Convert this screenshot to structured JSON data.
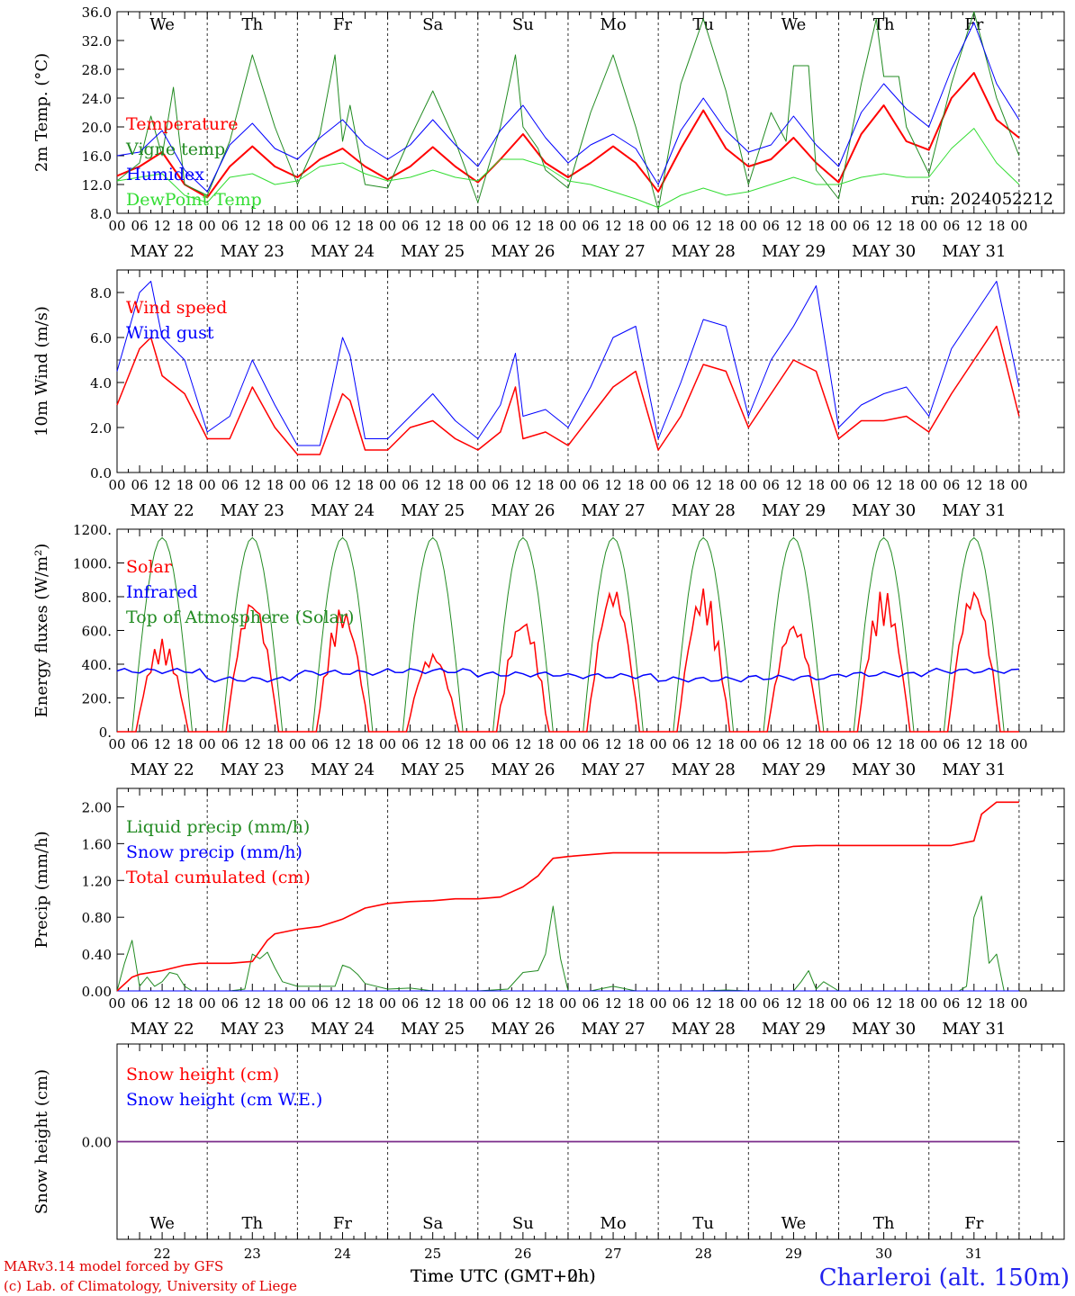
{
  "colors": {
    "red": "#ff0000",
    "green": "#228b22",
    "blue": "#0000ff",
    "lime": "#33dd33",
    "purple": "#7a2a8a",
    "weekend": "#ff0000"
  },
  "dates": [
    "MAY 22",
    "MAY 23",
    "MAY 24",
    "MAY 25",
    "MAY 26",
    "MAY 27",
    "MAY 28",
    "MAY 29",
    "MAY 30",
    "MAY 31"
  ],
  "date_numbers": [
    "22",
    "23",
    "24",
    "25",
    "26",
    "27",
    "28",
    "29",
    "30",
    "31"
  ],
  "weekdays": [
    "We",
    "Th",
    "Fr",
    "Sa",
    "Su",
    "Mo",
    "Tu",
    "We",
    "Th",
    "Fr"
  ],
  "weekend_flags": [
    false,
    false,
    false,
    true,
    true,
    false,
    false,
    false,
    false,
    false
  ],
  "hour_ticks": [
    "00",
    "06",
    "12",
    "18"
  ],
  "run_label": "run: 2024052212",
  "footer": {
    "model": "MARv3.14 model forced by GFS",
    "lab": "(c) Lab. of Climatology, University of Liege",
    "xlabel_a": "Time UTC (GMT+0h)",
    "xlabel_b": "Time UTC (GMT+2h)",
    "station": "Charleroi (alt. 150m)"
  },
  "chart_data": [
    {
      "type": "line",
      "id": "temperature",
      "ylabel": "2m Temp. (°C)",
      "ylim": [
        8.0,
        36.0
      ],
      "yticks": [
        "8.0",
        "12.0",
        "16.0",
        "20.0",
        "24.0",
        "28.0",
        "32.0",
        "36.0"
      ],
      "x_unit": "hours since May 22 00 UTC",
      "legend": [
        "Temperature",
        "Vigne temp",
        "Humidex",
        "DewPoint Temp"
      ],
      "series": [
        {
          "name": "Temperature",
          "color": "red",
          "x": [
            0,
            6,
            12,
            18,
            24,
            30,
            36,
            42,
            48,
            54,
            60,
            66,
            72,
            78,
            84,
            90,
            96,
            102,
            108,
            114,
            120,
            126,
            132,
            138,
            144,
            150,
            156,
            162,
            168,
            174,
            180,
            186,
            192,
            198,
            204,
            210,
            216,
            222,
            228,
            234,
            240
          ],
          "y": [
            13.2,
            14.5,
            16.5,
            12.0,
            10.2,
            14.5,
            17.3,
            14.5,
            13.0,
            15.5,
            17.0,
            14.5,
            12.7,
            14.5,
            17.2,
            14.5,
            12.3,
            15.5,
            19.0,
            15.0,
            13.0,
            15.0,
            17.3,
            15.0,
            11.0,
            17.0,
            22.3,
            17.0,
            14.5,
            15.5,
            18.5,
            15.0,
            12.3,
            19.0,
            23.0,
            18.0,
            16.8,
            24.0,
            27.5,
            21.0,
            18.5
          ]
        },
        {
          "name": "Vigne temp",
          "color": "green",
          "x": [
            0,
            6,
            9,
            12,
            15,
            18,
            24,
            30,
            36,
            42,
            48,
            54,
            58,
            60,
            62,
            66,
            72,
            78,
            84,
            90,
            96,
            102,
            106,
            108,
            112,
            114,
            120,
            126,
            132,
            138,
            144,
            150,
            156,
            162,
            168,
            174,
            178,
            180,
            184,
            186,
            192,
            198,
            202,
            204,
            208,
            210,
            216,
            222,
            228,
            234,
            240
          ],
          "y": [
            12.5,
            15.0,
            21.5,
            16.0,
            25.5,
            12.0,
            10.5,
            18.0,
            30.0,
            20.0,
            12.0,
            19.0,
            30.0,
            18.0,
            23.0,
            12.0,
            11.5,
            18.5,
            25.0,
            18.0,
            9.5,
            20.0,
            30.0,
            20.0,
            17.0,
            14.0,
            11.5,
            22.0,
            30.0,
            20.0,
            8.5,
            26.0,
            35.0,
            25.0,
            12.0,
            22.0,
            18.0,
            28.5,
            28.5,
            14.0,
            10.0,
            26.0,
            35.0,
            27.0,
            27.0,
            20.0,
            13.5,
            26.0,
            37.0,
            24.0,
            16.0
          ]
        },
        {
          "name": "Humidex",
          "color": "blue",
          "x": [
            0,
            6,
            12,
            18,
            24,
            30,
            36,
            42,
            48,
            54,
            60,
            66,
            72,
            78,
            84,
            90,
            96,
            102,
            108,
            114,
            120,
            126,
            132,
            138,
            144,
            150,
            156,
            162,
            168,
            174,
            180,
            186,
            192,
            198,
            204,
            210,
            216,
            222,
            228,
            234,
            240
          ],
          "y": [
            16.0,
            16.5,
            19.5,
            14.0,
            11.0,
            17.5,
            20.5,
            17.0,
            15.5,
            18.5,
            21.0,
            17.5,
            15.5,
            17.5,
            21.0,
            17.5,
            14.5,
            19.5,
            23.0,
            18.5,
            15.0,
            17.5,
            19.0,
            17.0,
            12.0,
            19.5,
            24.0,
            19.5,
            16.5,
            17.5,
            21.5,
            17.5,
            14.5,
            22.0,
            26.0,
            22.5,
            20.0,
            28.0,
            34.5,
            26.0,
            21.0
          ]
        },
        {
          "name": "DewPoint Temp",
          "color": "lime",
          "x": [
            0,
            6,
            12,
            18,
            24,
            30,
            36,
            42,
            48,
            54,
            60,
            66,
            72,
            78,
            84,
            90,
            96,
            102,
            108,
            114,
            120,
            126,
            132,
            138,
            144,
            150,
            156,
            162,
            168,
            174,
            180,
            186,
            192,
            198,
            204,
            210,
            216,
            222,
            228,
            234,
            240
          ],
          "y": [
            12.5,
            13.0,
            13.5,
            10.5,
            9.5,
            13.0,
            13.5,
            12.0,
            12.5,
            14.5,
            15.0,
            13.5,
            12.5,
            13.0,
            14.0,
            13.0,
            12.5,
            15.5,
            15.5,
            14.5,
            12.5,
            12.0,
            11.0,
            10.0,
            8.8,
            10.5,
            11.5,
            10.5,
            11.0,
            12.0,
            13.0,
            12.0,
            12.0,
            13.0,
            13.5,
            13.0,
            13.0,
            17.0,
            19.8,
            15.0,
            12.0
          ]
        }
      ]
    },
    {
      "type": "line",
      "id": "wind",
      "ylabel": "10m Wind (m/s)",
      "ylim": [
        0.0,
        9.0
      ],
      "yticks": [
        "0.0",
        "2.0",
        "4.0",
        "6.0",
        "8.0"
      ],
      "reference_line": 5.0,
      "legend": [
        "Wind speed",
        "Wind gust"
      ],
      "series": [
        {
          "name": "Wind speed",
          "color": "red",
          "x": [
            0,
            6,
            9,
            12,
            18,
            24,
            30,
            36,
            42,
            48,
            54,
            60,
            62,
            66,
            72,
            78,
            84,
            90,
            96,
            102,
            106,
            108,
            114,
            120,
            126,
            132,
            138,
            144,
            150,
            156,
            162,
            168,
            174,
            180,
            186,
            192,
            198,
            204,
            210,
            216,
            222,
            228,
            234,
            240
          ],
          "y": [
            3.0,
            5.5,
            6.0,
            4.3,
            3.5,
            1.5,
            1.5,
            3.8,
            2.0,
            0.8,
            0.8,
            3.5,
            3.2,
            1.0,
            1.0,
            2.0,
            2.3,
            1.5,
            1.0,
            1.8,
            3.8,
            1.5,
            1.8,
            1.2,
            2.5,
            3.8,
            4.5,
            1.0,
            2.5,
            4.8,
            4.5,
            2.0,
            3.5,
            5.0,
            4.5,
            1.5,
            2.3,
            2.3,
            2.5,
            1.8,
            3.5,
            5.0,
            6.5,
            2.5
          ]
        },
        {
          "name": "Wind gust",
          "color": "blue",
          "x": [
            0,
            6,
            9,
            12,
            18,
            24,
            30,
            36,
            42,
            48,
            54,
            60,
            62,
            66,
            72,
            78,
            84,
            90,
            96,
            102,
            106,
            108,
            114,
            120,
            126,
            132,
            138,
            144,
            150,
            156,
            162,
            168,
            174,
            180,
            186,
            192,
            198,
            204,
            210,
            216,
            222,
            228,
            234,
            240
          ],
          "y": [
            4.5,
            8.0,
            8.5,
            6.0,
            5.0,
            1.8,
            2.5,
            5.0,
            3.0,
            1.2,
            1.2,
            6.0,
            5.2,
            1.5,
            1.5,
            2.5,
            3.5,
            2.3,
            1.5,
            3.0,
            5.3,
            2.5,
            2.8,
            2.0,
            3.8,
            6.0,
            6.5,
            1.5,
            4.0,
            6.8,
            6.5,
            2.5,
            5.0,
            6.5,
            8.3,
            2.0,
            3.0,
            3.5,
            3.8,
            2.5,
            5.5,
            7.0,
            8.5,
            3.8
          ]
        }
      ]
    },
    {
      "type": "line",
      "id": "energy",
      "ylabel": "Energy fluxes (W/m²)",
      "ylim": [
        0,
        1200
      ],
      "yticks": [
        "0.",
        "200.",
        "400.",
        "600.",
        "800.",
        "1000.",
        "1200."
      ],
      "legend": [
        "Solar",
        "Infrared",
        "Top of Atmosphere (Solar)"
      ],
      "toa_peak": 1150,
      "solar_peaks": [
        550,
        780,
        750,
        460,
        690,
        850,
        860,
        640,
        850,
        840
      ],
      "infrared_level": [
        360,
        310,
        350,
        360,
        340,
        330,
        310,
        320,
        340,
        360
      ],
      "series_names": [
        "Solar",
        "Infrared",
        "Top of Atmosphere (Solar)"
      ]
    },
    {
      "type": "line",
      "id": "precip",
      "ylabel": "Precip (mm/h)",
      "ylim": [
        0.0,
        2.2
      ],
      "yticks": [
        "0.00",
        "0.40",
        "0.80",
        "1.20",
        "1.60",
        "2.00"
      ],
      "legend": [
        "Liquid precip (mm/h)",
        "Snow precip (mm/h)",
        "Total cumulated (cm)"
      ],
      "series": [
        {
          "name": "Liquid precip (mm/h)",
          "color": "green",
          "x": [
            0,
            2,
            4,
            6,
            8,
            10,
            12,
            14,
            16,
            18,
            20,
            24,
            30,
            34,
            36,
            38,
            40,
            42,
            44,
            48,
            54,
            58,
            60,
            62,
            64,
            66,
            72,
            78,
            84,
            90,
            96,
            104,
            108,
            112,
            114,
            116,
            118,
            120,
            126,
            132,
            138,
            144,
            150,
            156,
            162,
            168,
            174,
            180,
            182,
            184,
            186,
            188,
            192,
            198,
            204,
            210,
            216,
            222,
            224,
            226,
            228,
            230,
            232,
            234,
            236,
            240
          ],
          "y": [
            0.0,
            0.3,
            0.55,
            0.05,
            0.15,
            0.05,
            0.1,
            0.2,
            0.18,
            0.05,
            0.0,
            0.0,
            0.0,
            0.02,
            0.4,
            0.35,
            0.42,
            0.25,
            0.1,
            0.05,
            0.05,
            0.05,
            0.28,
            0.25,
            0.18,
            0.08,
            0.02,
            0.03,
            0.0,
            0.0,
            0.0,
            0.02,
            0.2,
            0.22,
            0.4,
            0.92,
            0.35,
            0.0,
            0.0,
            0.05,
            0.0,
            0.0,
            0.0,
            0.0,
            0.01,
            0.0,
            0.0,
            0.0,
            0.1,
            0.22,
            0.02,
            0.1,
            0.0,
            0.0,
            0.0,
            0.0,
            0.0,
            0.0,
            0.0,
            0.05,
            0.8,
            1.03,
            0.3,
            0.4,
            0.0,
            0.0
          ]
        },
        {
          "name": "Snow precip (mm/h)",
          "color": "blue",
          "x": [
            0,
            240
          ],
          "y": [
            0.0,
            0.0
          ]
        },
        {
          "name": "Total cumulated (cm)",
          "color": "red",
          "x": [
            0,
            4,
            6,
            12,
            18,
            22,
            24,
            30,
            36,
            40,
            42,
            48,
            54,
            60,
            66,
            72,
            78,
            84,
            90,
            96,
            102,
            108,
            112,
            114,
            116,
            120,
            126,
            132,
            138,
            144,
            150,
            156,
            162,
            168,
            174,
            180,
            186,
            192,
            198,
            204,
            210,
            216,
            222,
            228,
            230,
            234,
            240
          ],
          "y": [
            0.0,
            0.15,
            0.18,
            0.22,
            0.28,
            0.3,
            0.3,
            0.3,
            0.32,
            0.55,
            0.62,
            0.67,
            0.7,
            0.78,
            0.9,
            0.95,
            0.97,
            0.98,
            1.0,
            1.0,
            1.02,
            1.13,
            1.25,
            1.35,
            1.44,
            1.46,
            1.48,
            1.5,
            1.5,
            1.5,
            1.5,
            1.5,
            1.5,
            1.51,
            1.52,
            1.57,
            1.58,
            1.58,
            1.58,
            1.58,
            1.58,
            1.58,
            1.58,
            1.63,
            1.92,
            2.05,
            2.05
          ]
        }
      ]
    },
    {
      "type": "line",
      "id": "snow",
      "ylabel": "Snow height (cm)",
      "ylim": [
        -1.0,
        1.0
      ],
      "yticks": [
        "0.00"
      ],
      "legend": [
        "Snow height (cm)",
        "Snow height (cm W.E.)"
      ],
      "series": [
        {
          "name": "Snow height (cm)",
          "color": "red",
          "x": [
            0,
            240
          ],
          "y": [
            0.0,
            0.0
          ]
        },
        {
          "name": "Snow height (cm W.E.)",
          "color": "blue",
          "x": [
            0,
            240
          ],
          "y": [
            0.0,
            0.0
          ]
        }
      ]
    }
  ]
}
